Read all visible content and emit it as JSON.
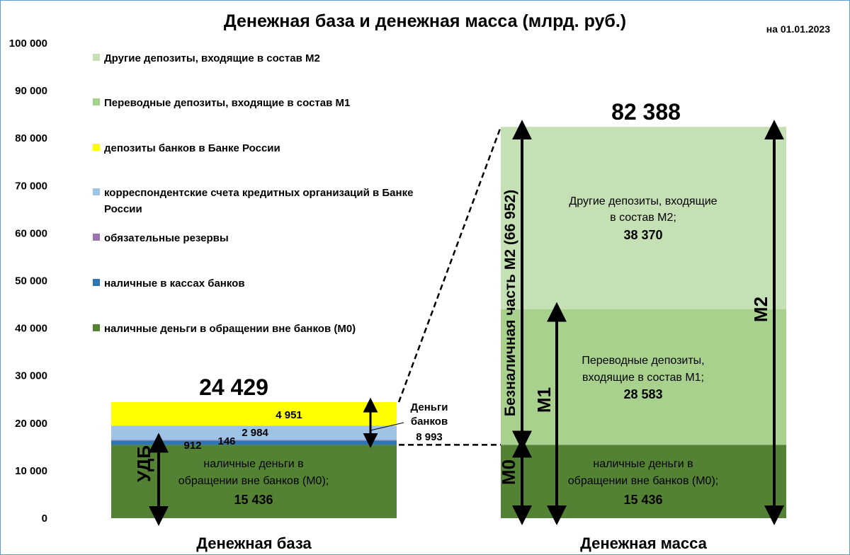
{
  "chart_data": {
    "type": "bar",
    "stacked": true,
    "title": "Денежная база и денежная масса (млрд. руб.)",
    "date_label": "на 01.01.2023",
    "ylim": [
      0,
      100000
    ],
    "yticks": [
      "0",
      "10 000",
      "20 000",
      "30 000",
      "40 000",
      "50 000",
      "60 000",
      "70 000",
      "80 000",
      "90 000",
      "100 000"
    ],
    "categories": [
      "Денежная база",
      "Денежная масса"
    ],
    "legend": [
      {
        "label": "Другие депозиты, входящие в состав М2",
        "color": "#c5e0b4"
      },
      {
        "label": "Переводные депозиты, входящие в состав М1",
        "color": "#a9d18e"
      },
      {
        "label": "депозиты банков в Банке России",
        "color": "#ffff00"
      },
      {
        "label": "корреспондентские счета кредитных организаций в Банке России",
        "color": "#9dc3e6"
      },
      {
        "label": "обязательные резервы",
        "color": "#9b72b0"
      },
      {
        "label": "наличные в кассах банков",
        "color": "#2e75b6"
      },
      {
        "label": "наличные деньги в обращении вне банков (М0)",
        "color": "#548235"
      }
    ],
    "bars": [
      {
        "category": "Денежная база",
        "total": "24 429",
        "segments": [
          {
            "name": "наличные деньги в обращении вне банков (М0)",
            "value": 15436,
            "label": "15 436",
            "color": "#548235"
          },
          {
            "name": "наличные в кассах банков",
            "value": 912,
            "label": "912",
            "color": "#2e75b6"
          },
          {
            "name": "обязательные резервы",
            "value": 146,
            "label": "146",
            "color": "#9b72b0"
          },
          {
            "name": "корреспондентские счета кредитных организаций в Банке России",
            "value": 2984,
            "label": "2 984",
            "color": "#9dc3e6"
          },
          {
            "name": "депозиты банков в Банке России",
            "value": 4951,
            "label": "4 951",
            "color": "#ffff00"
          }
        ]
      },
      {
        "category": "Денежная масса",
        "total": "82 388",
        "segments": [
          {
            "name": "наличные деньги в обращении вне банков (М0)",
            "value": 15436,
            "label": "15 436",
            "color": "#548235"
          },
          {
            "name": "Переводные депозиты, входящие в состав М1",
            "value": 28583,
            "label": "28 583",
            "color": "#a9d18e"
          },
          {
            "name": "Другие депозиты, входящие в состав М2",
            "value": 38370,
            "label": "38 370",
            "color": "#c5e0b4"
          }
        ]
      }
    ],
    "annotations": {
      "base_m0_text": [
        "наличные деньги в",
        "обращении вне банков (М0);"
      ],
      "mass_m0_text": [
        "наличные деньги в",
        "обращении вне банков (М0);"
      ],
      "m1_text": [
        "Переводные депозиты,",
        "входящие в состав М1;"
      ],
      "m2_text": [
        "Другие депозиты, входящие",
        "в состав М2;"
      ],
      "bank_money": [
        "Деньги",
        "банков",
        "8 993"
      ],
      "udb": "УДБ",
      "m0": "М0",
      "m1": "М1",
      "m2": "М2",
      "noncash": "Безналичная часть М2 (66 952)"
    }
  }
}
